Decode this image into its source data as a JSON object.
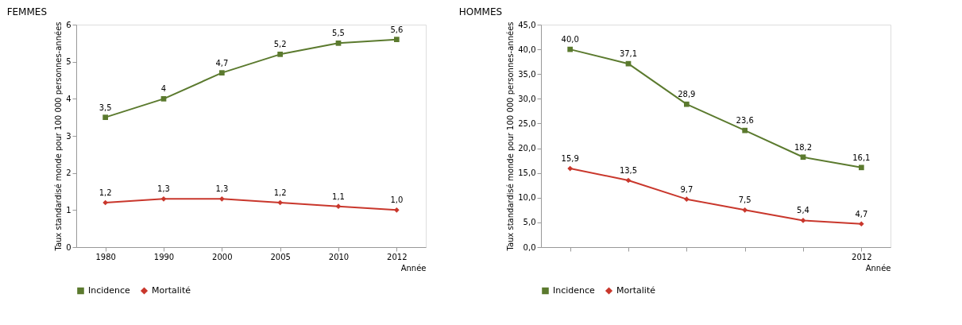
{
  "chart_data": [
    {
      "type": "line",
      "title": "FEMMES",
      "xlabel": "Année",
      "ylabel": "Taux standardisé monde pour 100 000 personnes-années",
      "categories": [
        "1980",
        "1990",
        "2000",
        "2005",
        "2010",
        "2012"
      ],
      "ylim": [
        0,
        6
      ],
      "yticks": [
        0,
        1,
        2,
        3,
        4,
        5,
        6
      ],
      "grid": false,
      "legend": "bottom",
      "line_style": "solid",
      "series": [
        {
          "name": "Incidence",
          "color": "#5b7a2e",
          "marker": "square",
          "values": [
            3.5,
            4,
            4.7,
            5.2,
            5.5,
            5.6
          ],
          "value_labels": [
            "3,5",
            "4",
            "4,7",
            "5,2",
            "5,5",
            "5,6"
          ]
        },
        {
          "name": "Mortalité",
          "color": "#c9372c",
          "marker": "diamond",
          "values": [
            1.2,
            1.3,
            1.3,
            1.2,
            1.1,
            1.0
          ],
          "value_labels": [
            "1,2",
            "1,3",
            "1,3",
            "1,2",
            "1,1",
            "1,0"
          ]
        }
      ]
    },
    {
      "type": "line",
      "title": "HOMMES",
      "xlabel": "Année",
      "ylabel": "Taux standardisé monde pour 100 000 personnes-années",
      "categories": [
        null,
        null,
        null,
        null,
        null,
        "2012"
      ],
      "ylim": [
        0,
        45
      ],
      "yticks": [
        {
          "value": 0,
          "label": "0,0"
        },
        {
          "value": 5,
          "label": "5,0"
        },
        {
          "value": 10,
          "label": "10,0"
        },
        {
          "value": 15,
          "label": "15,0"
        },
        {
          "value": 20,
          "label": "20,0"
        },
        {
          "value": 25,
          "label": "25,0"
        },
        {
          "value": 30,
          "label": "30,0"
        },
        {
          "value": 35,
          "label": "35,0"
        },
        {
          "value": 40,
          "label": "40,0"
        },
        {
          "value": 45,
          "label": "45,0"
        }
      ],
      "grid": false,
      "legend": "bottom",
      "line_style": "solid",
      "series": [
        {
          "name": "Incidence",
          "color": "#5b7a2e",
          "marker": "square",
          "values": [
            40.0,
            37.1,
            28.9,
            23.6,
            18.2,
            16.1
          ],
          "value_labels": [
            "40,0",
            "37,1",
            "28,9",
            "23,6",
            "18,2",
            "16,1"
          ]
        },
        {
          "name": "Mortalité",
          "color": "#c9372c",
          "marker": "diamond",
          "values": [
            15.9,
            13.5,
            9.7,
            7.5,
            5.4,
            4.7
          ],
          "value_labels": [
            "15,9",
            "13,5",
            "9,7",
            "7,5",
            "5,4",
            "4,7"
          ]
        }
      ]
    }
  ]
}
